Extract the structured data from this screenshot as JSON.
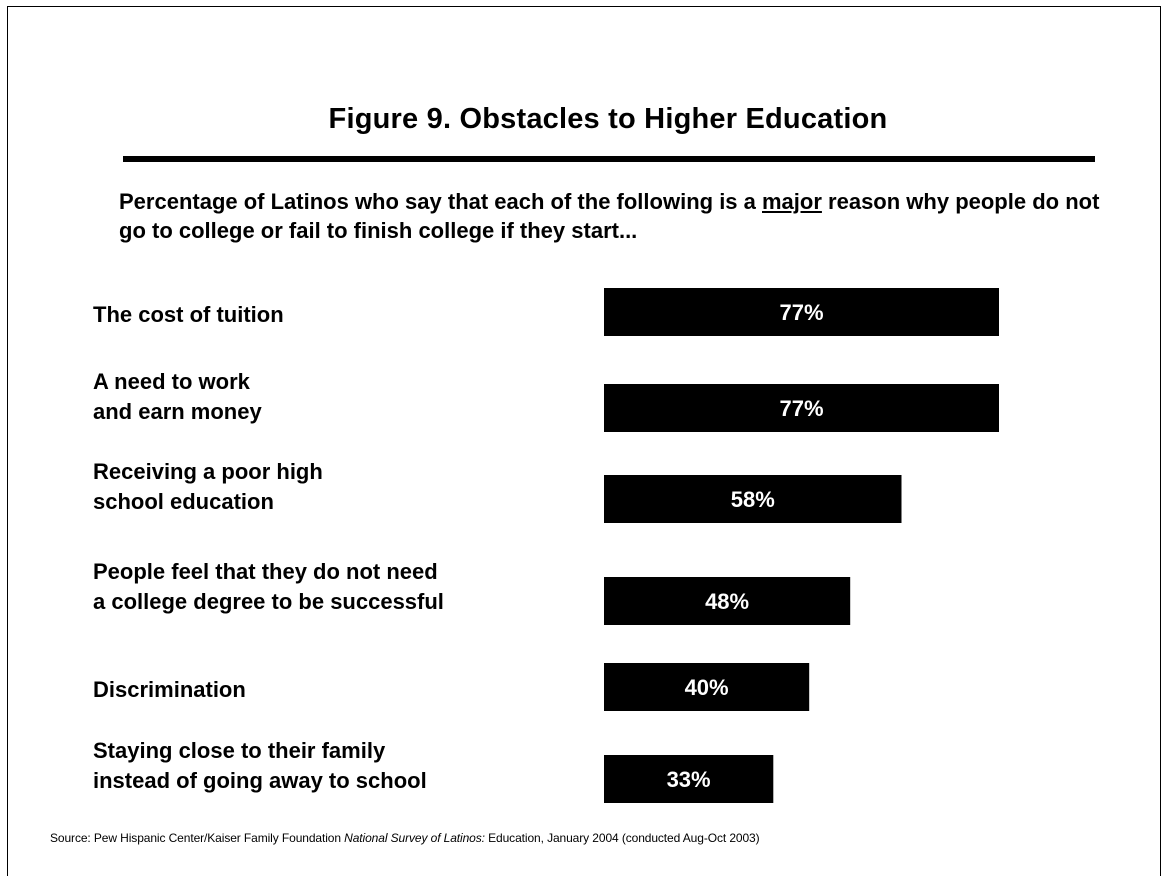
{
  "title": "Figure 9. Obstacles to Higher Education",
  "subtitle": {
    "before": "Percentage of Latinos who say that each of the following is a ",
    "emphasis": "major",
    "after": " reason why people do not go to college or fail to finish college if they start..."
  },
  "chart_data": {
    "type": "bar",
    "orientation": "horizontal",
    "categories": [
      "The cost of tuition",
      "A need to work and earn money",
      "Receiving a poor high school education",
      "People feel that they do not need a college degree to be successful",
      "Discrimination",
      "Staying close to their family instead of going away to school"
    ],
    "category_lines": [
      [
        "The cost of tuition"
      ],
      [
        "A need to work",
        "and earn money"
      ],
      [
        "Receiving a poor high",
        "school education"
      ],
      [
        "People feel that they do not need",
        "a college degree to be successful"
      ],
      [
        "Discrimination"
      ],
      [
        "Staying close to their family",
        "instead of going away to school"
      ]
    ],
    "values": [
      77,
      77,
      58,
      48,
      40,
      33
    ],
    "value_labels": [
      "77%",
      "77%",
      "58%",
      "48%",
      "40%",
      "33%"
    ],
    "unit": "%",
    "bar_color": "#000000",
    "label_color": "#ffffff",
    "grid": false,
    "legend": false
  },
  "source": {
    "prefix": "Source: Pew Hispanic Center/Kaiser Family Foundation ",
    "italic": "National Survey of Latinos:",
    "suffix": " Education, January 2004 (conducted Aug-Oct 2003)"
  }
}
